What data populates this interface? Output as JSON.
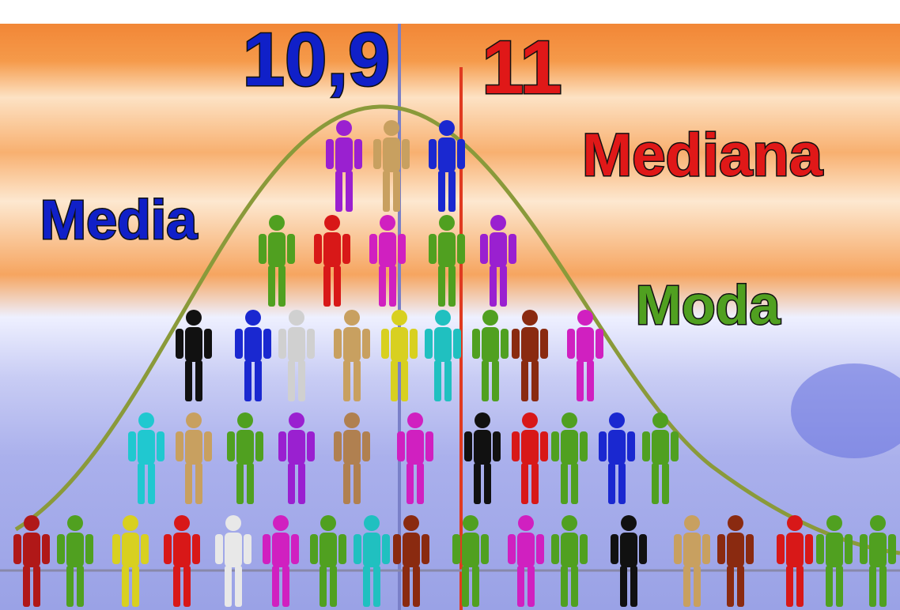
{
  "labels": {
    "mean_value": "10,9",
    "median_value": "11",
    "median": "Mediana",
    "mean": "Media",
    "mode": "Moda"
  }
}
